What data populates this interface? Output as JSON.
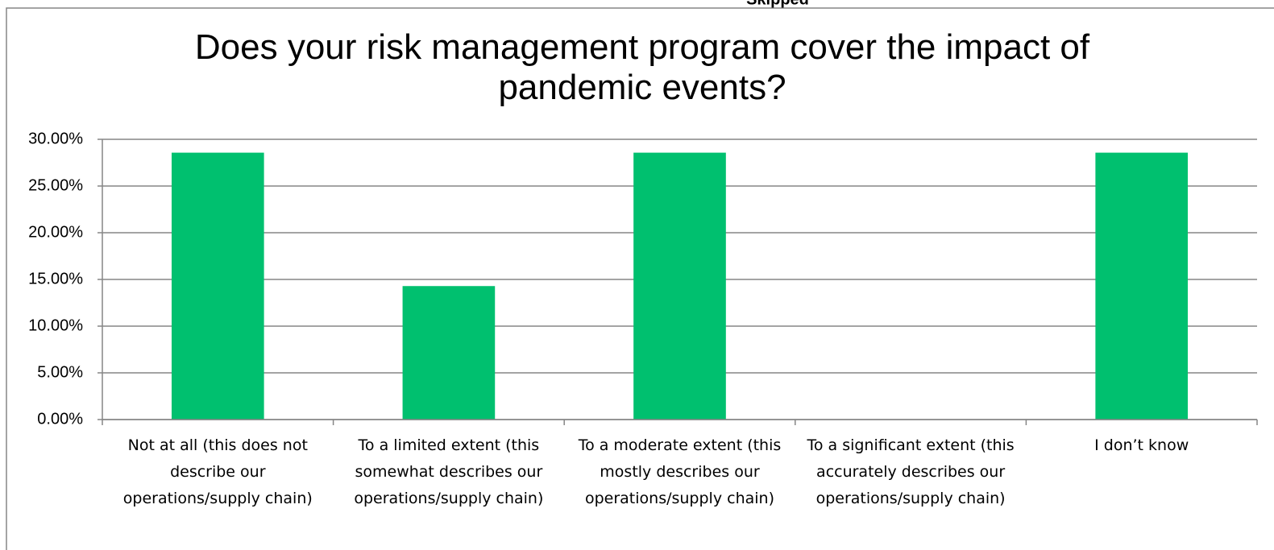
{
  "header_fragment": "Skipped",
  "chart_data": {
    "type": "bar",
    "title": "Does your risk management program cover the impact of pandemic events?",
    "categories": [
      "Not at all (this does not describe our operations/supply chain)",
      "To a limited extent (this somewhat describes our operations/supply chain)",
      "To a moderate extent (this mostly describes our operations/supply chain)",
      "To a significant extent (this accurately describes our operations/supply chain)",
      "I don’t know"
    ],
    "values": [
      28.57,
      14.29,
      28.57,
      0,
      28.57
    ],
    "color": "#00c06f",
    "ylim": [
      0,
      30
    ],
    "yticks": [
      {
        "value": 0,
        "label": "0.00%"
      },
      {
        "value": 5,
        "label": "5.00%"
      },
      {
        "value": 10,
        "label": "10.00%"
      },
      {
        "value": 15,
        "label": "15.00%"
      },
      {
        "value": 20,
        "label": "20.00%"
      },
      {
        "value": 25,
        "label": "25.00%"
      },
      {
        "value": 30,
        "label": "30.00%"
      }
    ],
    "grid": true
  }
}
